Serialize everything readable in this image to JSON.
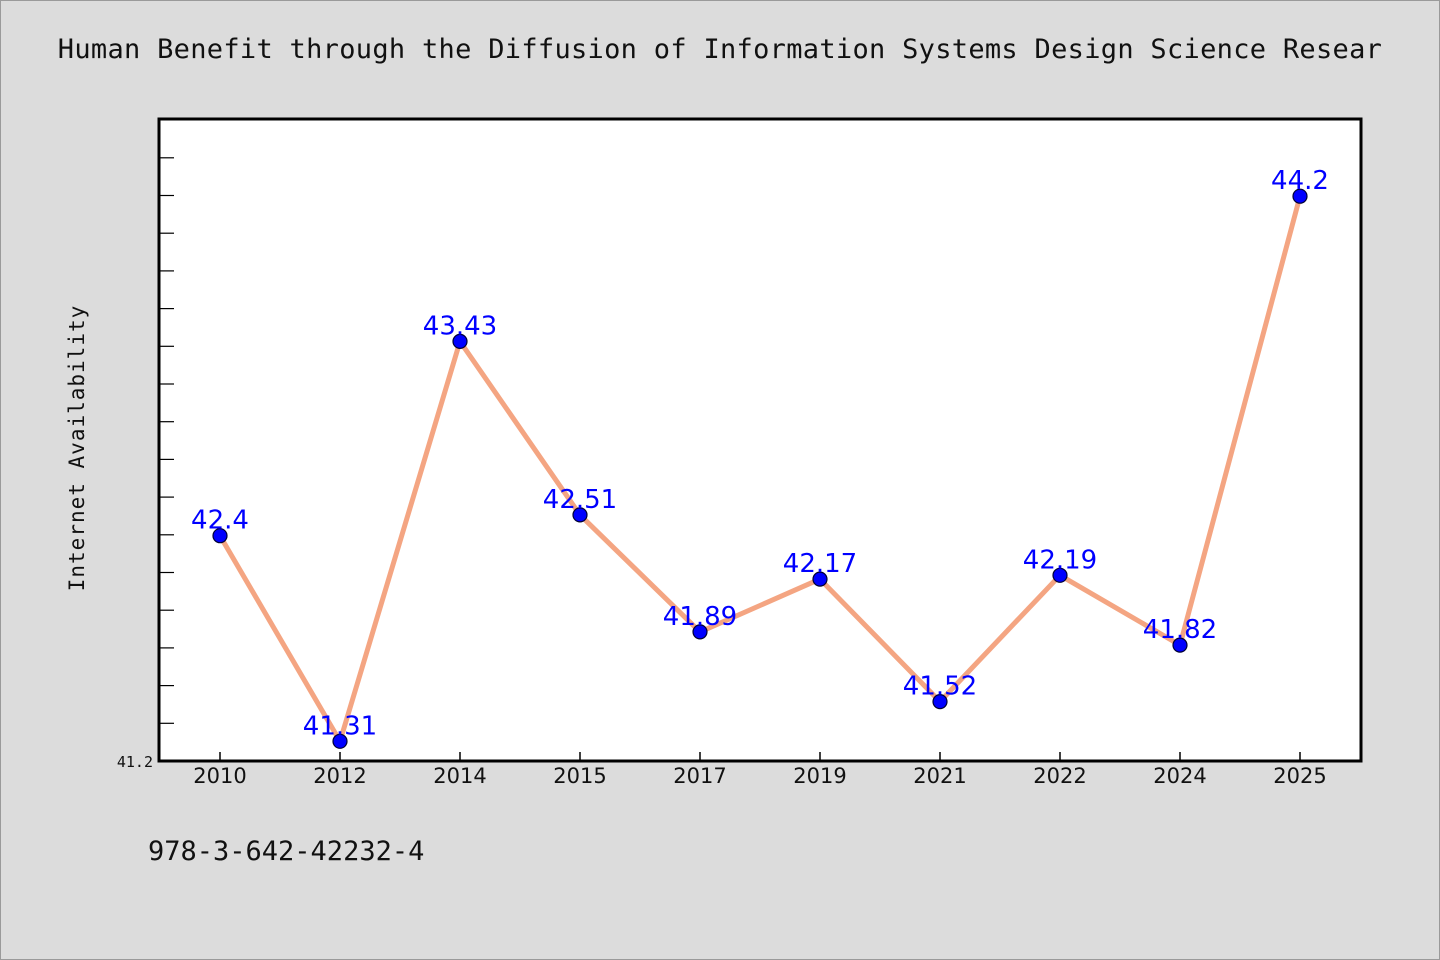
{
  "chart_data": {
    "type": "line",
    "title": "Human Benefit through the Diffusion of Information Systems Design Science Resear",
    "ylabel": "Internet Availability",
    "xlabel": "",
    "categories": [
      "2010",
      "2012",
      "2014",
      "2015",
      "2017",
      "2019",
      "2021",
      "2022",
      "2024",
      "2025"
    ],
    "values": [
      42.4,
      41.31,
      43.43,
      42.51,
      41.89,
      42.17,
      41.52,
      42.19,
      41.82,
      44.2
    ],
    "data_labels": [
      "42.4",
      "41.31",
      "43.43",
      "42.51",
      "41.89",
      "42.17",
      "41.52",
      "42.19",
      "41.82",
      "44.2"
    ],
    "ylim": [
      41.2,
      44.6
    ],
    "ytick_labels": [
      "41.2"
    ],
    "grid": false,
    "line_color": "#f4a582",
    "marker_color": "#0000ff"
  },
  "footer": {
    "isbn": "978-3-642-42232-4"
  }
}
